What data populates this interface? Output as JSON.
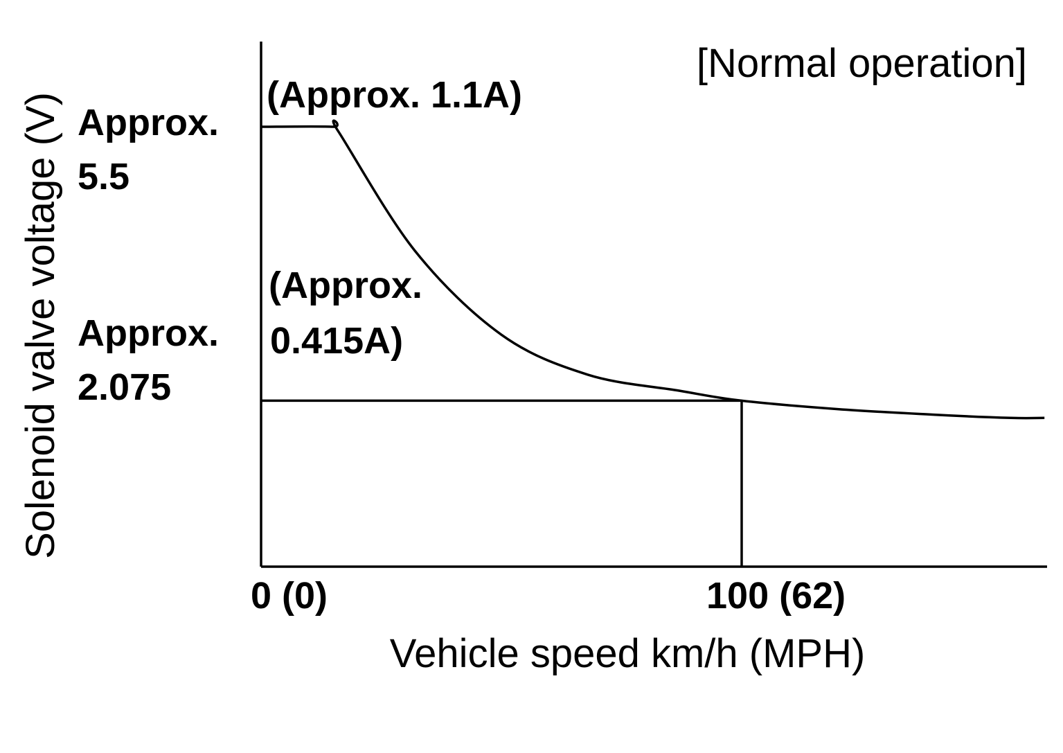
{
  "chart_data": {
    "type": "line",
    "title": "[Normal operation]",
    "xlabel": "Vehicle speed km/h (MPH)",
    "ylabel": "Solenoid valve voltage (V)",
    "xlim": [
      0,
      163
    ],
    "ylim": [
      0,
      7.5
    ],
    "x_ticks": [
      {
        "value": 0,
        "label": "0 (0)"
      },
      {
        "value": 100,
        "label": "100 (62)"
      }
    ],
    "y_ticks": [
      {
        "value": 5.5,
        "label_line1": "Approx.",
        "label_line2": "5.5"
      },
      {
        "value": 2.075,
        "label_line1": "Approx.",
        "label_line2": "2.075"
      }
    ],
    "annotations": {
      "high_current": "(Approx. 1.1A)",
      "low_current_line1": "(Approx.",
      "low_current_line2": "0.415A)"
    },
    "series": [
      {
        "x": [
          0,
          15,
          16,
          32,
          50,
          68,
          87,
          100,
          120,
          140,
          156,
          163
        ],
        "y": [
          5.5,
          5.5,
          5.45,
          3.95,
          2.9,
          2.4,
          2.2,
          2.075,
          1.97,
          1.9,
          1.86,
          1.86
        ]
      }
    ],
    "reference_lines": {
      "x": 100,
      "y": 2.075
    },
    "grid": false,
    "legend": "none",
    "colors": {
      "line": "#000000",
      "background": "#ffffff"
    }
  }
}
